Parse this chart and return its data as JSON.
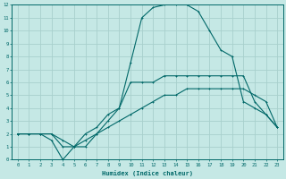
{
  "xlabel": "Humidex (Indice chaleur)",
  "xlim": [
    -0.5,
    23.5
  ],
  "ylim": [
    0,
    12
  ],
  "xticks": [
    0,
    1,
    2,
    3,
    4,
    5,
    6,
    7,
    8,
    9,
    10,
    11,
    12,
    13,
    14,
    15,
    16,
    17,
    18,
    19,
    20,
    21,
    22,
    23
  ],
  "yticks": [
    0,
    1,
    2,
    3,
    4,
    5,
    6,
    7,
    8,
    9,
    10,
    11,
    12
  ],
  "background_color": "#c5e8e5",
  "grid_color": "#a8d0cc",
  "line_color": "#006868",
  "line1_x": [
    0,
    1,
    2,
    3,
    4,
    5,
    6,
    7,
    8,
    9,
    10,
    11,
    12,
    13,
    14,
    15,
    16,
    17,
    18,
    19,
    20,
    21,
    22,
    23
  ],
  "line1_y": [
    2,
    2,
    2,
    2,
    1,
    1,
    1.5,
    2,
    2.5,
    3,
    3.5,
    4,
    4.5,
    5,
    5,
    5.5,
    5.5,
    5.5,
    5.5,
    5.5,
    5.5,
    5,
    4.5,
    2.5
  ],
  "line2_x": [
    0,
    1,
    2,
    3,
    4,
    5,
    6,
    7,
    8,
    9,
    10,
    11,
    12,
    13,
    14,
    15,
    16,
    17,
    18,
    19,
    20,
    21,
    22,
    23
  ],
  "line2_y": [
    2,
    2,
    2,
    1.5,
    0,
    1,
    1,
    2,
    3,
    4,
    7.5,
    11,
    11.8,
    12,
    12,
    12,
    11.5,
    10,
    8.5,
    8,
    4.5,
    4,
    3.5,
    2.5
  ],
  "line3_x": [
    0,
    1,
    2,
    3,
    4,
    5,
    6,
    7,
    8,
    9,
    10,
    11,
    12,
    13,
    14,
    15,
    16,
    17,
    18,
    19,
    20,
    21,
    22,
    23
  ],
  "line3_y": [
    2,
    2,
    2,
    2,
    1.5,
    1,
    2,
    2.5,
    3.5,
    4,
    6,
    6,
    6,
    6.5,
    6.5,
    6.5,
    6.5,
    6.5,
    6.5,
    6.5,
    6.5,
    4.5,
    3.5,
    2.5
  ]
}
